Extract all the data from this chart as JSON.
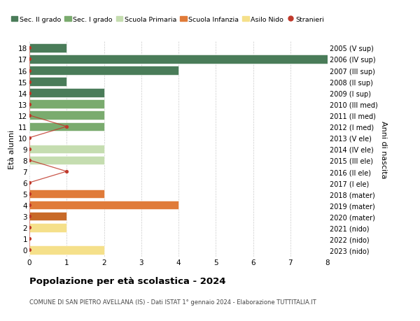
{
  "ages": [
    18,
    17,
    16,
    15,
    14,
    13,
    12,
    11,
    10,
    9,
    8,
    7,
    6,
    5,
    4,
    3,
    2,
    1,
    0
  ],
  "labels_right": [
    "2005 (V sup)",
    "2006 (IV sup)",
    "2007 (III sup)",
    "2008 (II sup)",
    "2009 (I sup)",
    "2010 (III med)",
    "2011 (II med)",
    "2012 (I med)",
    "2013 (V ele)",
    "2014 (IV ele)",
    "2015 (III ele)",
    "2016 (II ele)",
    "2017 (I ele)",
    "2018 (mater)",
    "2019 (mater)",
    "2020 (mater)",
    "2021 (nido)",
    "2022 (nido)",
    "2023 (nido)"
  ],
  "values": [
    1,
    8,
    4,
    1,
    2,
    2,
    2,
    2,
    0,
    2,
    2,
    0,
    0,
    2,
    4,
    1,
    1,
    0,
    2
  ],
  "bar_colors": [
    "#4a7c59",
    "#4a7c59",
    "#4a7c59",
    "#4a7c59",
    "#4a7c59",
    "#7aab6e",
    "#7aab6e",
    "#7aab6e",
    "#c5ddb0",
    "#c5ddb0",
    "#c5ddb0",
    "#c5ddb0",
    "#c5ddb0",
    "#e07b39",
    "#e07b39",
    "#c86a28",
    "#f5e08a",
    "#f5e08a",
    "#f5e08a"
  ],
  "stranieri": [
    0,
    0,
    0,
    0,
    0,
    0,
    0,
    1,
    0,
    0,
    0,
    1,
    0,
    0,
    0,
    0,
    0,
    0,
    0
  ],
  "legend_labels": [
    "Sec. II grado",
    "Sec. I grado",
    "Scuola Primaria",
    "Scuola Infanzia",
    "Asilo Nido",
    "Stranieri"
  ],
  "legend_colors": [
    "#4a7c59",
    "#7aab6e",
    "#c5ddb0",
    "#e07b39",
    "#f5e08a",
    "#c0392b"
  ],
  "title": "Popolazione per età scolastica - 2024",
  "subtitle": "COMUNE DI SAN PIETRO AVELLANA (IS) - Dati ISTAT 1° gennaio 2024 - Elaborazione TUTTITALIA.IT",
  "ylabel_left": "Età alunni",
  "ylabel_right": "Anni di nascita",
  "xlim": [
    0,
    8
  ],
  "xticks": [
    0,
    1,
    2,
    3,
    4,
    5,
    6,
    7,
    8
  ],
  "background_color": "#ffffff",
  "grid_color": "#cccccc",
  "bar_height": 0.78
}
